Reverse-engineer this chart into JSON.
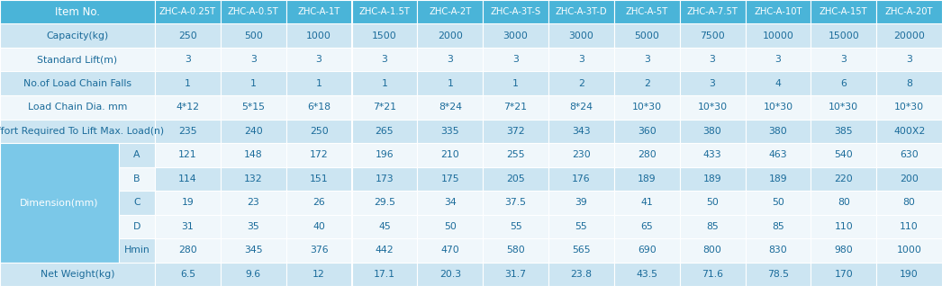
{
  "col_headers": [
    "Item No.",
    "ZHC-A-0.25T",
    "ZHC-A-0.5T",
    "ZHC-A-1T",
    "ZHC-A-1.5T",
    "ZHC-A-2T",
    "ZHC-A-3T-S",
    "ZHC-A-3T-D",
    "ZHC-A-5T",
    "ZHC-A-7.5T",
    "ZHC-A-10T",
    "ZHC-A-15T",
    "ZHC-A-20T"
  ],
  "rows": [
    {
      "label": "Capacity(kg)",
      "sub": "",
      "values": [
        "250",
        "500",
        "1000",
        "1500",
        "2000",
        "3000",
        "3000",
        "5000",
        "7500",
        "10000",
        "15000",
        "20000"
      ]
    },
    {
      "label": "Standard Lift(m)",
      "sub": "",
      "values": [
        "3",
        "3",
        "3",
        "3",
        "3",
        "3",
        "3",
        "3",
        "3",
        "3",
        "3",
        "3"
      ]
    },
    {
      "label": "No.of Load Chain Falls",
      "sub": "",
      "values": [
        "1",
        "1",
        "1",
        "1",
        "1",
        "1",
        "2",
        "2",
        "3",
        "4",
        "6",
        "8"
      ]
    },
    {
      "label": "Load Chain Dia. mm",
      "sub": "",
      "values": [
        "4*12",
        "5*15",
        "6*18",
        "7*21",
        "8*24",
        "7*21",
        "8*24",
        "10*30",
        "10*30",
        "10*30",
        "10*30",
        "10*30"
      ]
    },
    {
      "label": "Effort Required To Lift Max. Load(n)",
      "sub": "",
      "values": [
        "235",
        "240",
        "250",
        "265",
        "335",
        "372",
        "343",
        "360",
        "380",
        "380",
        "385",
        "400X2"
      ]
    },
    {
      "label": "Dimension(mm)",
      "sub": "A",
      "values": [
        "121",
        "148",
        "172",
        "196",
        "210",
        "255",
        "230",
        "280",
        "433",
        "463",
        "540",
        "630"
      ]
    },
    {
      "label": "",
      "sub": "B",
      "values": [
        "114",
        "132",
        "151",
        "173",
        "175",
        "205",
        "176",
        "189",
        "189",
        "189",
        "220",
        "200"
      ]
    },
    {
      "label": "",
      "sub": "C",
      "values": [
        "19",
        "23",
        "26",
        "29.5",
        "34",
        "37.5",
        "39",
        "41",
        "50",
        "50",
        "80",
        "80"
      ]
    },
    {
      "label": "",
      "sub": "D",
      "values": [
        "31",
        "35",
        "40",
        "45",
        "50",
        "55",
        "55",
        "65",
        "85",
        "85",
        "110",
        "110"
      ]
    },
    {
      "label": "",
      "sub": "Hmin",
      "values": [
        "280",
        "345",
        "376",
        "442",
        "470",
        "580",
        "565",
        "690",
        "800",
        "830",
        "980",
        "1000"
      ]
    },
    {
      "label": "Net Weight(kg)",
      "sub": "",
      "values": [
        "6.5",
        "9.6",
        "12",
        "17.1",
        "20.3",
        "31.7",
        "23.8",
        "43.5",
        "71.6",
        "78.5",
        "170",
        "190"
      ]
    }
  ],
  "row_bg": [
    "#f0f7fb",
    "#cce5f2",
    "#f0f7fb",
    "#cce5f2",
    "#f0f7fb",
    "#cce5f2",
    "#f0f7fb",
    "#cce5f2",
    "#f0f7fb",
    "#f0f7fb",
    "#f0f7fb",
    "#cce5f2"
  ],
  "dim_sub_bg": [
    "#cce5f2",
    "#f0f7fb",
    "#cce5f2",
    "#f0f7fb",
    "#cce5f2"
  ],
  "header_bg": "#4ab4d8",
  "header_text": "#ffffff",
  "cell_text": "#1a6b9a",
  "dim_main_bg": "#7bc8e8",
  "dim_label": "Dimension(mm)"
}
